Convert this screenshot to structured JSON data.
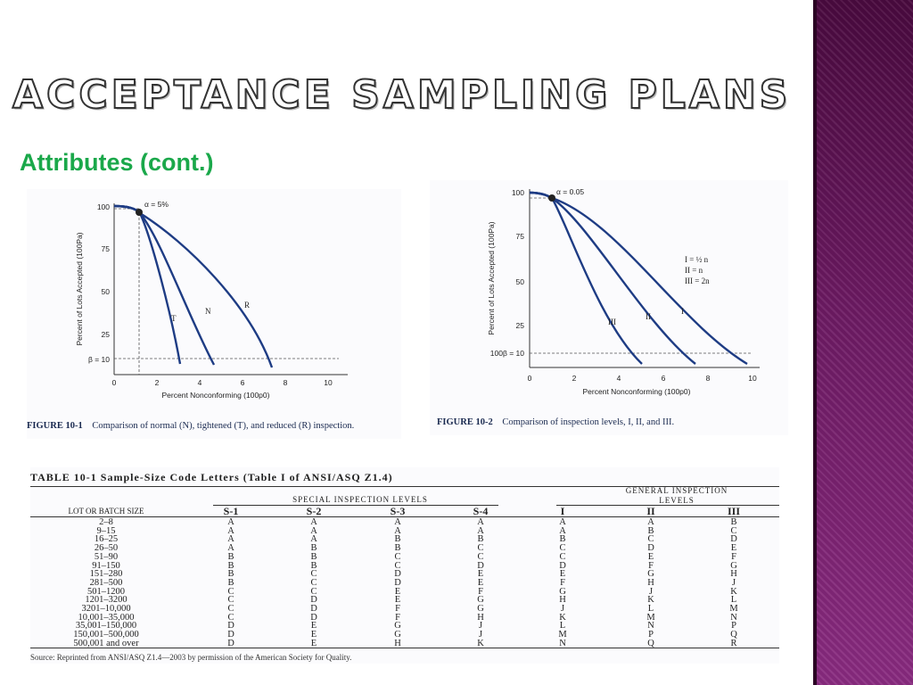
{
  "slide": {
    "title": "Acceptance Sampling Plans",
    "subtitle": "Attributes (cont.)",
    "accent_color": "#1aa84a",
    "sidebar_color": "#6d1a63"
  },
  "figure1": {
    "alpha_label": "α = 5%",
    "beta_label": "β = 10",
    "ylabel": "Percent of Lots Accepted (100Pa)",
    "xlabel": "Percent Nonconforming (100p0)",
    "yticks": [
      "100",
      "75",
      "50",
      "25"
    ],
    "xticks": [
      "0",
      "2",
      "4",
      "6",
      "8",
      "10"
    ],
    "curve_labels": [
      "T",
      "N",
      "R"
    ],
    "caption_label": "FIGURE 10-1",
    "caption_text": "Comparison of normal (N), tightened (T), and reduced (R) inspection."
  },
  "figure2": {
    "alpha_label": "α = 0.05",
    "beta_label": "100β = 10",
    "ylabel": "Percent of Lots Accepted (100Pa)",
    "xlabel": "Percent Nonconforming (100p0)",
    "yticks": [
      "100",
      "75",
      "50",
      "25"
    ],
    "xticks": [
      "0",
      "2",
      "4",
      "6",
      "8",
      "10"
    ],
    "curve_labels": [
      "III",
      "II",
      "I"
    ],
    "legend": [
      "I = ½ n",
      "II = n",
      "III = 2n"
    ],
    "caption_label": "FIGURE 10-2",
    "caption_text": "Comparison of inspection levels, I, II, and III."
  },
  "table": {
    "title": "TABLE 10-1    Sample-Size Code Letters (Table I of ANSI/ASQ Z1.4)",
    "special_header": "SPECIAL INSPECTION LEVELS",
    "general_header_1": "GENERAL INSPECTION",
    "general_header_2": "LEVELS",
    "lot_header": "LOT OR BATCH SIZE",
    "columns": [
      "S-1",
      "S-2",
      "S-3",
      "S-4",
      "I",
      "II",
      "III"
    ],
    "rows": [
      [
        "2–8",
        "A",
        "A",
        "A",
        "A",
        "A",
        "A",
        "B"
      ],
      [
        "9–15",
        "A",
        "A",
        "A",
        "A",
        "A",
        "B",
        "C"
      ],
      [
        "16–25",
        "A",
        "A",
        "B",
        "B",
        "B",
        "C",
        "D"
      ],
      [
        "26–50",
        "A",
        "B",
        "B",
        "C",
        "C",
        "D",
        "E"
      ],
      [
        "51–90",
        "B",
        "B",
        "C",
        "C",
        "C",
        "E",
        "F"
      ],
      [
        "91–150",
        "B",
        "B",
        "C",
        "D",
        "D",
        "F",
        "G"
      ],
      [
        "151–280",
        "B",
        "C",
        "D",
        "E",
        "E",
        "G",
        "H"
      ],
      [
        "281–500",
        "B",
        "C",
        "D",
        "E",
        "F",
        "H",
        "J"
      ],
      [
        "501–1200",
        "C",
        "C",
        "E",
        "F",
        "G",
        "J",
        "K"
      ],
      [
        "1201–3200",
        "C",
        "D",
        "E",
        "G",
        "H",
        "K",
        "L"
      ],
      [
        "3201–10,000",
        "C",
        "D",
        "F",
        "G",
        "J",
        "L",
        "M"
      ],
      [
        "10,001–35,000",
        "C",
        "D",
        "F",
        "H",
        "K",
        "M",
        "N"
      ],
      [
        "35,001–150,000",
        "D",
        "E",
        "G",
        "J",
        "L",
        "N",
        "P"
      ],
      [
        "150,001–500,000",
        "D",
        "E",
        "G",
        "J",
        "M",
        "P",
        "Q"
      ],
      [
        "500,001 and over",
        "D",
        "E",
        "H",
        "K",
        "N",
        "Q",
        "R"
      ]
    ],
    "source": "Source: Reprinted from ANSI/ASQ Z1.4—2003 by permission of the American Society for Quality."
  }
}
